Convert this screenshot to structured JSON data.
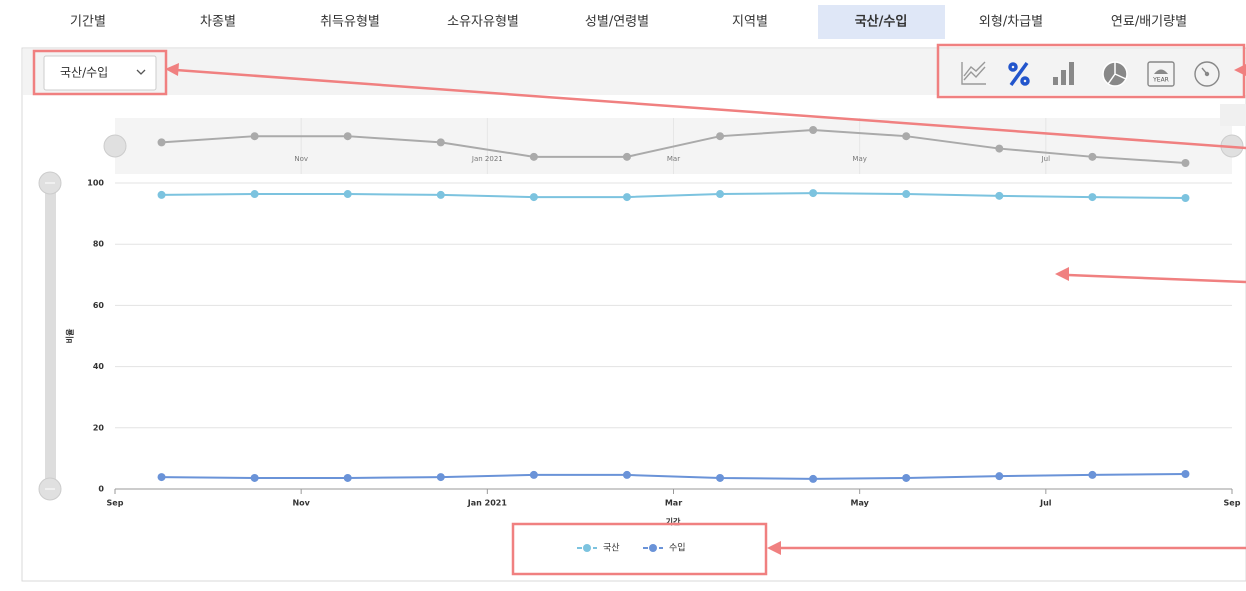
{
  "tabs": [
    "기간별",
    "차종별",
    "취득유형별",
    "소유자유형별",
    "성별/연령별",
    "지역별",
    "국산/수입",
    "외형/차급별",
    "연료/배기량별"
  ],
  "active_tab": 6,
  "dropdown": "국산/수입",
  "chart_data": {
    "type": "line",
    "x_label": "기간",
    "y_label": "비율",
    "x": [
      "2020-09",
      "2020-10",
      "2020-11",
      "2020-12",
      "2021-01",
      "2021-02",
      "2021-03",
      "2021-04",
      "2021-05",
      "2021-06",
      "2021-07",
      "2021-08"
    ],
    "series": [
      {
        "name": "국산",
        "color": "#7cc3df",
        "values": [
          96.1,
          96.4,
          96.4,
          96.1,
          95.4,
          95.4,
          96.4,
          96.7,
          96.4,
          95.8,
          95.4,
          95.1
        ]
      },
      {
        "name": "수입",
        "color": "#6a93d8",
        "values": [
          3.9,
          3.6,
          3.6,
          3.9,
          4.6,
          4.6,
          3.6,
          3.3,
          3.6,
          4.2,
          4.6,
          4.9
        ]
      }
    ],
    "xlim": [
      "2020-09",
      "2021-09"
    ],
    "xticks": [
      {
        "value": "2020-09",
        "label": "Sep"
      },
      {
        "value": "2020-11",
        "label": "Nov"
      },
      {
        "value": "2021-01",
        "label": "Jan 2021"
      },
      {
        "value": "2021-03",
        "label": "Mar"
      },
      {
        "value": "2021-05",
        "label": "May"
      },
      {
        "value": "2021-07",
        "label": "Jul"
      },
      {
        "value": "2021-09",
        "label": "Sep"
      }
    ],
    "ylim": [
      0,
      100
    ],
    "yticks": [
      0,
      20,
      40,
      60,
      80,
      100
    ],
    "grid": true,
    "legend": "bottom"
  }
}
